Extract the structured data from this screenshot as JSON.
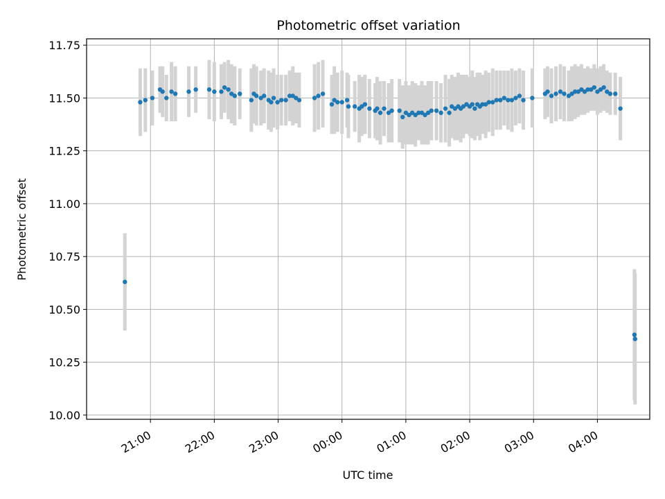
{
  "chart_data": {
    "type": "scatter",
    "title": "Photometric offset variation",
    "xlabel": "UTC time",
    "ylabel": "Photometric offset",
    "x_unit": "UTC hours (values past 24 are after midnight)",
    "xlim": [
      20.0,
      28.82
    ],
    "ylim": [
      9.98,
      11.78
    ],
    "x_ticks": [
      {
        "value": 21,
        "label": "21:00"
      },
      {
        "value": 22,
        "label": "22:00"
      },
      {
        "value": 23,
        "label": "23:00"
      },
      {
        "value": 24,
        "label": "00:00"
      },
      {
        "value": 25,
        "label": "01:00"
      },
      {
        "value": 26,
        "label": "02:00"
      },
      {
        "value": 27,
        "label": "03:00"
      },
      {
        "value": 28,
        "label": "04:00"
      }
    ],
    "y_ticks": [
      {
        "value": 10.0,
        "label": "10.00"
      },
      {
        "value": 10.25,
        "label": "10.25"
      },
      {
        "value": 10.5,
        "label": "10.50"
      },
      {
        "value": 10.75,
        "label": "10.75"
      },
      {
        "value": 11.0,
        "label": "11.00"
      },
      {
        "value": 11.25,
        "label": "11.25"
      },
      {
        "value": 11.5,
        "label": "11.50"
      },
      {
        "value": 11.75,
        "label": "11.75"
      }
    ],
    "grid": true,
    "colors": {
      "points": "#1f77b4",
      "error_bars": "#d3d3d3",
      "grid": "#b0b0b0"
    },
    "series": [
      {
        "values_format": "[x, y, yerr]",
        "points": [
          [
            20.6,
            10.63,
            0.23
          ],
          [
            20.84,
            11.48,
            0.16
          ],
          [
            20.92,
            11.49,
            0.15
          ],
          [
            21.03,
            11.5,
            0.13
          ],
          [
            21.15,
            11.54,
            0.11
          ],
          [
            21.19,
            11.53,
            0.12
          ],
          [
            21.25,
            11.5,
            0.11
          ],
          [
            21.33,
            11.53,
            0.14
          ],
          [
            21.39,
            11.52,
            0.13
          ],
          [
            21.6,
            11.53,
            0.12
          ],
          [
            21.71,
            11.54,
            0.11
          ],
          [
            21.92,
            11.54,
            0.14
          ],
          [
            22.0,
            11.53,
            0.14
          ],
          [
            22.11,
            11.53,
            0.13
          ],
          [
            22.16,
            11.55,
            0.12
          ],
          [
            22.22,
            11.54,
            0.14
          ],
          [
            22.27,
            11.52,
            0.14
          ],
          [
            22.32,
            11.51,
            0.14
          ],
          [
            22.4,
            11.52,
            0.12
          ],
          [
            22.58,
            11.49,
            0.15
          ],
          [
            22.62,
            11.52,
            0.14
          ],
          [
            22.66,
            11.51,
            0.14
          ],
          [
            22.73,
            11.5,
            0.13
          ],
          [
            22.78,
            11.51,
            0.13
          ],
          [
            22.85,
            11.49,
            0.14
          ],
          [
            22.89,
            11.48,
            0.14
          ],
          [
            22.93,
            11.5,
            0.14
          ],
          [
            22.99,
            11.48,
            0.13
          ],
          [
            23.05,
            11.49,
            0.12
          ],
          [
            23.12,
            11.49,
            0.12
          ],
          [
            23.18,
            11.51,
            0.12
          ],
          [
            23.23,
            11.51,
            0.14
          ],
          [
            23.28,
            11.5,
            0.12
          ],
          [
            23.33,
            11.49,
            0.13
          ],
          [
            23.57,
            11.5,
            0.16
          ],
          [
            23.63,
            11.51,
            0.16
          ],
          [
            23.7,
            11.52,
            0.16
          ],
          [
            23.84,
            11.47,
            0.14
          ],
          [
            23.88,
            11.49,
            0.16
          ],
          [
            23.93,
            11.48,
            0.14
          ],
          [
            24.0,
            11.48,
            0.15
          ],
          [
            24.08,
            11.49,
            0.13
          ],
          [
            24.1,
            11.46,
            0.15
          ],
          [
            24.2,
            11.46,
            0.12
          ],
          [
            24.27,
            11.45,
            0.16
          ],
          [
            24.31,
            11.46,
            0.14
          ],
          [
            24.36,
            11.47,
            0.14
          ],
          [
            24.43,
            11.45,
            0.14
          ],
          [
            24.52,
            11.44,
            0.13
          ],
          [
            24.55,
            11.45,
            0.15
          ],
          [
            24.6,
            11.43,
            0.15
          ],
          [
            24.66,
            11.45,
            0.13
          ],
          [
            24.73,
            11.43,
            0.14
          ],
          [
            24.78,
            11.44,
            0.15
          ],
          [
            24.9,
            11.44,
            0.15
          ],
          [
            24.95,
            11.41,
            0.15
          ],
          [
            25.0,
            11.43,
            0.15
          ],
          [
            25.05,
            11.42,
            0.14
          ],
          [
            25.1,
            11.43,
            0.15
          ],
          [
            25.15,
            11.42,
            0.15
          ],
          [
            25.2,
            11.43,
            0.13
          ],
          [
            25.25,
            11.43,
            0.15
          ],
          [
            25.3,
            11.42,
            0.14
          ],
          [
            25.35,
            11.43,
            0.15
          ],
          [
            25.4,
            11.44,
            0.14
          ],
          [
            25.48,
            11.44,
            0.14
          ],
          [
            25.55,
            11.43,
            0.14
          ],
          [
            25.62,
            11.45,
            0.16
          ],
          [
            25.68,
            11.43,
            0.16
          ],
          [
            25.72,
            11.46,
            0.15
          ],
          [
            25.77,
            11.45,
            0.15
          ],
          [
            25.82,
            11.46,
            0.16
          ],
          [
            25.86,
            11.45,
            0.16
          ],
          [
            25.9,
            11.46,
            0.15
          ],
          [
            25.95,
            11.47,
            0.14
          ],
          [
            26.0,
            11.46,
            0.14
          ],
          [
            26.04,
            11.47,
            0.16
          ],
          [
            26.08,
            11.45,
            0.15
          ],
          [
            26.12,
            11.47,
            0.15
          ],
          [
            26.16,
            11.46,
            0.16
          ],
          [
            26.2,
            11.47,
            0.14
          ],
          [
            26.25,
            11.47,
            0.16
          ],
          [
            26.3,
            11.48,
            0.14
          ],
          [
            26.36,
            11.48,
            0.16
          ],
          [
            26.42,
            11.49,
            0.14
          ],
          [
            26.48,
            11.49,
            0.14
          ],
          [
            26.54,
            11.5,
            0.13
          ],
          [
            26.6,
            11.49,
            0.14
          ],
          [
            26.66,
            11.49,
            0.15
          ],
          [
            26.72,
            11.5,
            0.13
          ],
          [
            26.78,
            11.51,
            0.13
          ],
          [
            26.84,
            11.49,
            0.14
          ],
          [
            26.98,
            11.5,
            0.14
          ],
          [
            27.18,
            11.52,
            0.12
          ],
          [
            27.22,
            11.53,
            0.12
          ],
          [
            27.28,
            11.51,
            0.13
          ],
          [
            27.35,
            11.52,
            0.13
          ],
          [
            27.42,
            11.53,
            0.13
          ],
          [
            27.48,
            11.52,
            0.13
          ],
          [
            27.55,
            11.51,
            0.12
          ],
          [
            27.6,
            11.52,
            0.13
          ],
          [
            27.65,
            11.53,
            0.13
          ],
          [
            27.7,
            11.53,
            0.12
          ],
          [
            27.75,
            11.54,
            0.12
          ],
          [
            27.8,
            11.53,
            0.11
          ],
          [
            27.85,
            11.54,
            0.11
          ],
          [
            27.9,
            11.54,
            0.1
          ],
          [
            27.95,
            11.55,
            0.11
          ],
          [
            28.0,
            11.53,
            0.11
          ],
          [
            28.05,
            11.54,
            0.11
          ],
          [
            28.1,
            11.55,
            0.11
          ],
          [
            28.15,
            11.53,
            0.1
          ],
          [
            28.2,
            11.52,
            0.1
          ],
          [
            28.28,
            11.52,
            0.1
          ],
          [
            28.36,
            11.45,
            0.15
          ],
          [
            28.58,
            10.38,
            0.31
          ],
          [
            28.59,
            10.36,
            0.31
          ]
        ]
      }
    ]
  }
}
